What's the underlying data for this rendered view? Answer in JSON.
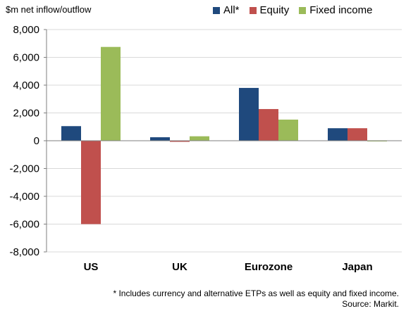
{
  "chart_data": {
    "type": "bar",
    "ylabel": "$m net inflow/outflow",
    "categories": [
      "US",
      "UK",
      "Eurozone",
      "Japan"
    ],
    "series": [
      {
        "name": "All*",
        "color": "#1f497d",
        "values": [
          1050,
          250,
          3800,
          900
        ]
      },
      {
        "name": "Equity",
        "color": "#c0504d",
        "values": [
          -6000,
          -80,
          2280,
          900
        ]
      },
      {
        "name": "Fixed income",
        "color": "#9bbb59",
        "values": [
          6750,
          320,
          1520,
          -20
        ]
      }
    ],
    "ylim": [
      -8000,
      8000
    ],
    "yticks": [
      8000,
      6000,
      4000,
      2000,
      0,
      -2000,
      -4000,
      -6000,
      -8000
    ],
    "ytick_labels": [
      "8,000",
      "6,000",
      "4,000",
      "2,000",
      "0",
      "-2,000",
      "-4,000",
      "-6,000",
      "-8,000"
    ],
    "grid": true,
    "legend": "top-right"
  },
  "footnote": {
    "line1": "* Includes currency and alternative ETPs as well as equity and fixed income.",
    "line2": "Source: Markit."
  }
}
